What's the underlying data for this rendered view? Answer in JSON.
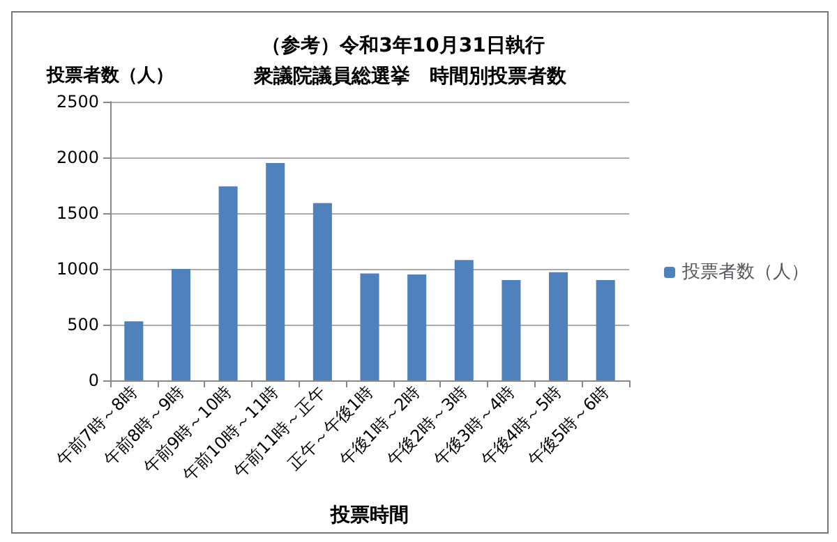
{
  "chart_data": {
    "type": "bar",
    "title": "（参考）令和3年10月31日執行",
    "subtitle": "衆議院議員総選挙　時間別投票者数",
    "xlabel": "投票時間",
    "ylabel": "投票者数（人）",
    "categories": [
      "午前7時～8時",
      "午前8時～9時",
      "午前9時～10時",
      "午前10時～11時",
      "午前11時～正午",
      "正午～午後1時",
      "午後1時～2時",
      "午後2時～3時",
      "午後3時～4時",
      "午後4時～5時",
      "午後5時～6時"
    ],
    "series": [
      {
        "name": "投票者数（人）",
        "color": "#4f81bd",
        "values": [
          530,
          1000,
          1740,
          1950,
          1590,
          960,
          950,
          1080,
          900,
          970,
          900
        ]
      }
    ],
    "ylim": [
      0,
      2500
    ],
    "yticks": [
      0,
      500,
      1000,
      1500,
      2000,
      2500
    ],
    "grid": "y",
    "legend": "right"
  }
}
